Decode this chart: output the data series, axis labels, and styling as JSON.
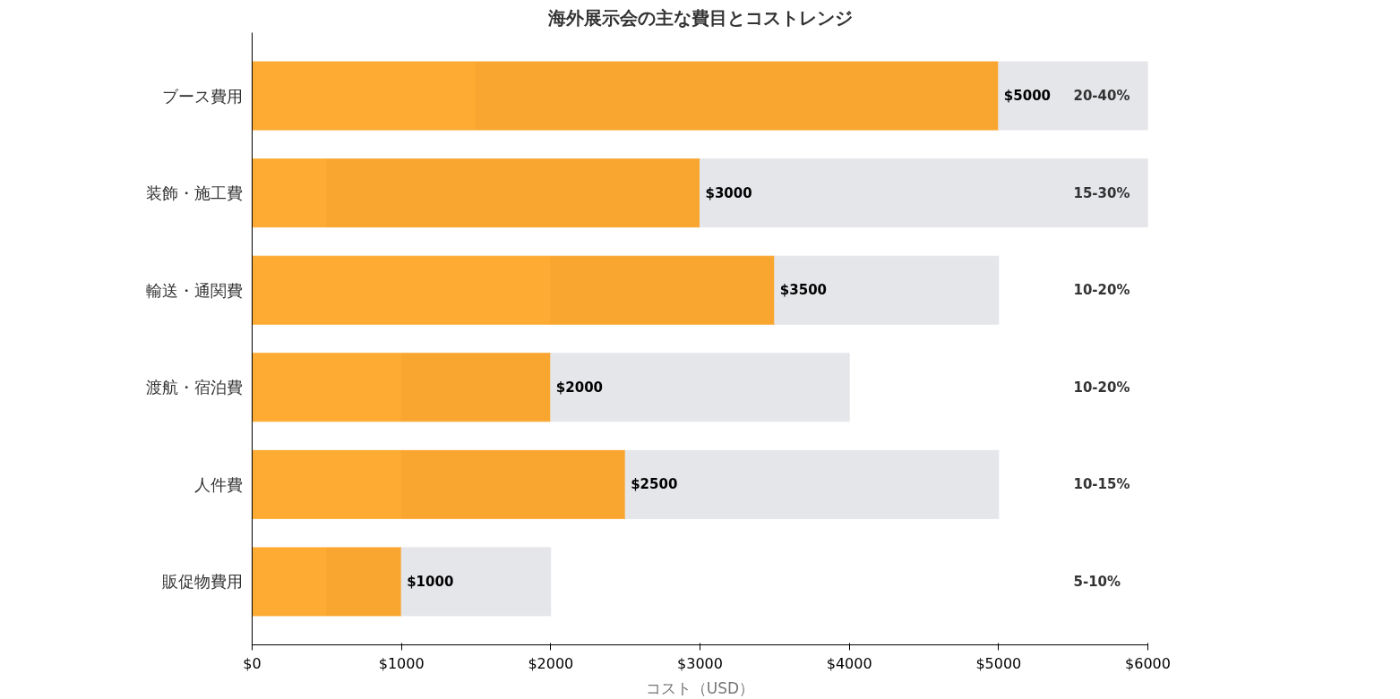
{
  "chart_data": {
    "type": "bar",
    "orientation": "horizontal",
    "title": "海外展示会の主な費目とコストレンジ",
    "xlabel": "コスト（USD）",
    "categories": [
      "ブース費用",
      "装飾・施工費",
      "輸送・通関費",
      "渡航・宿泊費",
      "人件費",
      "販促物費用"
    ],
    "series": [
      {
        "color": "#fdab33",
        "values": [
          1500,
          500,
          2000,
          1000,
          1000,
          500
        ]
      },
      {
        "color": "#f9a630",
        "values": [
          3500,
          2500,
          1500,
          1000,
          1500,
          500
        ]
      },
      {
        "color": "#e5e6ea",
        "values": [
          1000,
          3000,
          1500,
          2000,
          2500,
          1000
        ]
      }
    ],
    "stacked": true,
    "xlim": [
      0,
      6000
    ],
    "xticks": [
      {
        "value": 0,
        "label": "$0"
      },
      {
        "value": 1000,
        "label": "$1000"
      },
      {
        "value": 2000,
        "label": "$2000"
      },
      {
        "value": 3000,
        "label": "$3000"
      },
      {
        "value": 4000,
        "label": "$4000"
      },
      {
        "value": 5000,
        "label": "$5000"
      },
      {
        "value": 6000,
        "label": "$6000"
      }
    ],
    "annotations": [
      {
        "text": "$5000",
        "x": 5000,
        "y": "ブース費用"
      },
      {
        "text": "$3000",
        "x": 3000,
        "y": "装飾・施工費"
      },
      {
        "text": "$3500",
        "x": 3500,
        "y": "輸送・通関費"
      },
      {
        "text": "$2000",
        "x": 2000,
        "y": "渡航・宿泊費"
      },
      {
        "text": "$2500",
        "x": 2500,
        "y": "人件費"
      },
      {
        "text": "$1000",
        "x": 1000,
        "y": "販促物費用"
      },
      "20-40%",
      "15-30%",
      "10-20%",
      "10-20%",
      "10-15%",
      "5-10%"
    ],
    "grid": false
  }
}
